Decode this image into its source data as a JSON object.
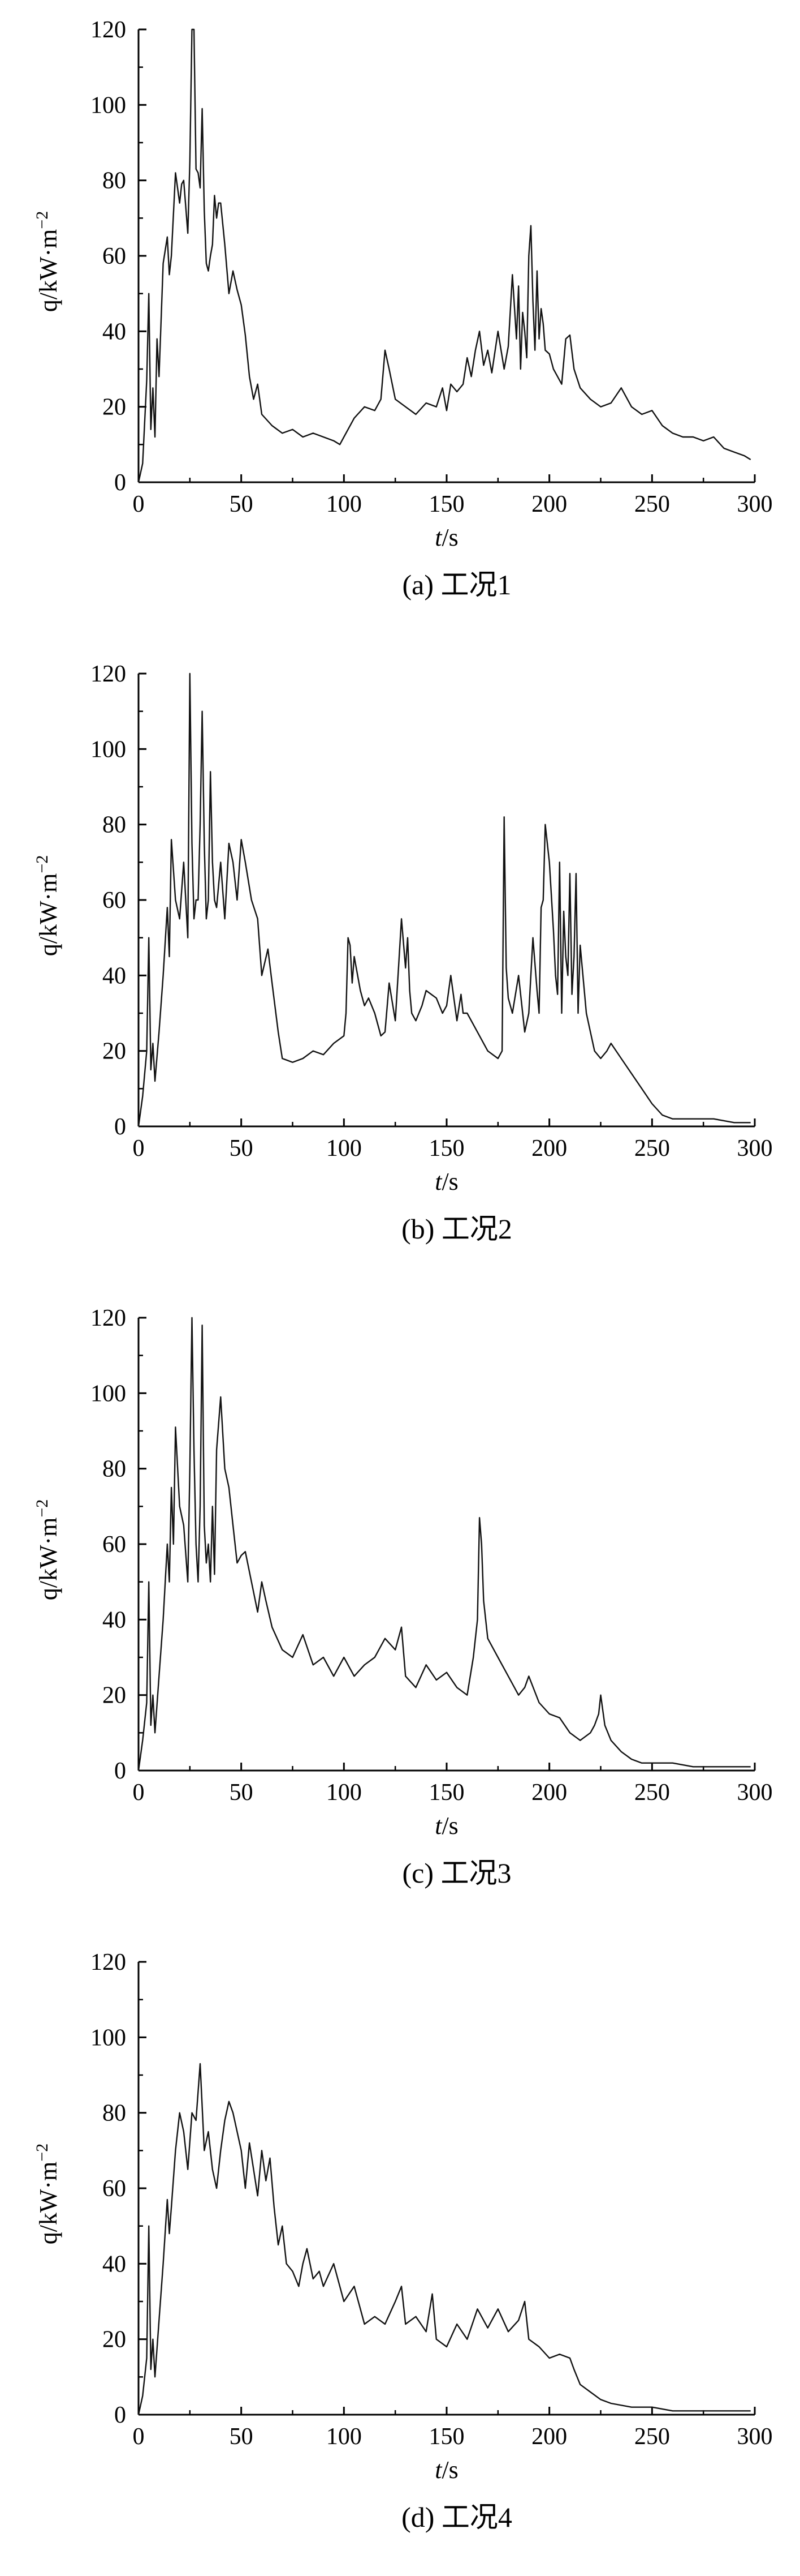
{
  "chart_data": [
    {
      "type": "line",
      "caption": "(a) 工况1",
      "xlabel": "t/s",
      "ylabel": "q/kW·m",
      "ylabel_sup": "−2",
      "xlim": [
        0,
        300
      ],
      "ylim": [
        0,
        120
      ],
      "xticks": [
        0,
        50,
        100,
        150,
        200,
        250,
        300
      ],
      "yticks": [
        0,
        20,
        40,
        60,
        80,
        100,
        120
      ],
      "grid": false,
      "series": [
        {
          "x": [
            0,
            2,
            4,
            5,
            6,
            7,
            8,
            9,
            10,
            12,
            14,
            15,
            16,
            18,
            20,
            21,
            22,
            24,
            25,
            26,
            27,
            28,
            29,
            30,
            31,
            32,
            33,
            34,
            35,
            36,
            37,
            38,
            39,
            40,
            42,
            44,
            46,
            48,
            50,
            52,
            54,
            56,
            58,
            60,
            65,
            70,
            75,
            80,
            85,
            90,
            95,
            98,
            100,
            105,
            110,
            115,
            118,
            120,
            122,
            125,
            130,
            135,
            140,
            145,
            148,
            150,
            152,
            155,
            158,
            160,
            162,
            164,
            166,
            168,
            170,
            172,
            175,
            178,
            180,
            182,
            184,
            185,
            186,
            187,
            188,
            189,
            190,
            191,
            192,
            193,
            194,
            195,
            196,
            197,
            198,
            200,
            202,
            204,
            206,
            208,
            210,
            212,
            215,
            220,
            225,
            230,
            235,
            240,
            245,
            250,
            255,
            260,
            265,
            270,
            275,
            280,
            285,
            290,
            295,
            298
          ],
          "values": [
            0,
            5,
            27,
            50,
            14,
            25,
            12,
            38,
            28,
            58,
            65,
            55,
            60,
            82,
            74,
            79,
            80,
            66,
            85,
            120,
            120,
            83,
            82,
            78,
            99,
            72,
            58,
            56,
            60,
            63,
            76,
            70,
            74,
            74,
            63,
            50,
            56,
            51,
            47,
            39,
            28,
            22,
            26,
            18,
            15,
            13,
            14,
            12,
            13,
            12,
            11,
            10,
            12,
            17,
            20,
            19,
            22,
            35,
            30,
            22,
            20,
            18,
            21,
            20,
            25,
            19,
            26,
            24,
            26,
            33,
            28,
            35,
            40,
            31,
            35,
            29,
            40,
            30,
            36,
            55,
            38,
            52,
            30,
            45,
            40,
            33,
            60,
            68,
            48,
            35,
            56,
            38,
            46,
            42,
            35,
            34,
            30,
            28,
            26,
            38,
            39,
            30,
            25,
            22,
            20,
            21,
            25,
            20,
            18,
            19,
            15,
            13,
            12,
            12,
            11,
            12,
            9,
            8,
            7,
            6
          ]
        }
      ]
    },
    {
      "type": "line",
      "caption": "(b) 工况2",
      "xlabel": "t/s",
      "ylabel": "q/kW·m",
      "ylabel_sup": "−2",
      "xlim": [
        0,
        300
      ],
      "ylim": [
        0,
        120
      ],
      "xticks": [
        0,
        50,
        100,
        150,
        200,
        250,
        300
      ],
      "yticks": [
        0,
        20,
        40,
        60,
        80,
        100,
        120
      ],
      "grid": false,
      "series": [
        {
          "x": [
            0,
            2,
            4,
            5,
            6,
            7,
            8,
            10,
            12,
            14,
            15,
            16,
            18,
            20,
            22,
            24,
            25,
            26,
            27,
            28,
            29,
            30,
            31,
            32,
            33,
            34,
            35,
            36,
            37,
            38,
            40,
            42,
            44,
            46,
            48,
            50,
            52,
            55,
            58,
            60,
            63,
            65,
            68,
            70,
            75,
            80,
            85,
            90,
            95,
            100,
            101,
            102,
            103,
            104,
            105,
            108,
            110,
            112,
            115,
            118,
            120,
            122,
            125,
            128,
            130,
            131,
            132,
            133,
            135,
            138,
            140,
            145,
            148,
            150,
            152,
            155,
            157,
            158,
            160,
            165,
            170,
            175,
            177,
            178,
            179,
            180,
            182,
            185,
            188,
            190,
            192,
            194,
            195,
            196,
            197,
            198,
            200,
            202,
            203,
            204,
            205,
            206,
            207,
            208,
            209,
            210,
            211,
            212,
            213,
            214,
            215,
            218,
            220,
            222,
            225,
            228,
            230,
            235,
            240,
            245,
            250,
            255,
            260,
            270,
            280,
            290,
            298
          ],
          "values": [
            0,
            8,
            20,
            50,
            15,
            22,
            12,
            25,
            40,
            58,
            45,
            76,
            60,
            55,
            70,
            50,
            120,
            75,
            55,
            60,
            60,
            80,
            110,
            75,
            55,
            60,
            94,
            70,
            60,
            58,
            70,
            55,
            75,
            70,
            60,
            76,
            70,
            60,
            55,
            40,
            47,
            38,
            25,
            18,
            17,
            18,
            20,
            19,
            22,
            24,
            30,
            50,
            48,
            38,
            45,
            36,
            32,
            34,
            30,
            24,
            25,
            38,
            28,
            55,
            42,
            50,
            36,
            30,
            28,
            32,
            36,
            34,
            30,
            32,
            40,
            28,
            35,
            30,
            30,
            25,
            20,
            18,
            20,
            82,
            42,
            34,
            30,
            40,
            25,
            30,
            50,
            36,
            30,
            58,
            60,
            80,
            70,
            52,
            40,
            35,
            70,
            30,
            57,
            45,
            40,
            67,
            35,
            45,
            67,
            30,
            48,
            30,
            25,
            20,
            18,
            20,
            22,
            18,
            14,
            10,
            6,
            3,
            2,
            2,
            2,
            1,
            1
          ]
        }
      ]
    },
    {
      "type": "line",
      "caption": "(c) 工况3",
      "xlabel": "t/s",
      "ylabel": "q/kW·m",
      "ylabel_sup": "−2",
      "xlim": [
        0,
        300
      ],
      "ylim": [
        0,
        120
      ],
      "xticks": [
        0,
        50,
        100,
        150,
        200,
        250,
        300
      ],
      "yticks": [
        0,
        20,
        40,
        60,
        80,
        100,
        120
      ],
      "grid": false,
      "series": [
        {
          "x": [
            0,
            2,
            4,
            5,
            6,
            7,
            8,
            10,
            12,
            14,
            15,
            16,
            17,
            18,
            20,
            22,
            24,
            25,
            26,
            27,
            28,
            29,
            30,
            31,
            32,
            33,
            34,
            35,
            36,
            37,
            38,
            40,
            42,
            44,
            46,
            48,
            50,
            52,
            55,
            58,
            60,
            62,
            65,
            70,
            75,
            80,
            85,
            90,
            95,
            100,
            105,
            110,
            115,
            120,
            125,
            128,
            130,
            135,
            140,
            145,
            150,
            155,
            160,
            163,
            165,
            166,
            167,
            168,
            170,
            175,
            180,
            185,
            188,
            190,
            195,
            200,
            205,
            210,
            215,
            220,
            222,
            224,
            225,
            227,
            230,
            235,
            240,
            245,
            250,
            260,
            270,
            280,
            290,
            298
          ],
          "values": [
            0,
            8,
            18,
            50,
            12,
            20,
            10,
            25,
            40,
            60,
            50,
            75,
            60,
            91,
            70,
            65,
            50,
            80,
            120,
            85,
            60,
            50,
            70,
            118,
            65,
            55,
            60,
            50,
            70,
            52,
            85,
            99,
            80,
            75,
            65,
            55,
            57,
            58,
            50,
            42,
            50,
            45,
            38,
            32,
            30,
            36,
            28,
            30,
            25,
            30,
            25,
            28,
            30,
            35,
            32,
            38,
            25,
            22,
            28,
            24,
            26,
            22,
            20,
            30,
            40,
            67,
            60,
            45,
            35,
            30,
            25,
            20,
            22,
            25,
            18,
            15,
            14,
            10,
            8,
            10,
            12,
            15,
            20,
            12,
            8,
            5,
            3,
            2,
            2,
            2,
            1,
            1,
            1,
            1
          ]
        }
      ]
    },
    {
      "type": "line",
      "caption": "(d) 工况4",
      "xlabel": "t/s",
      "ylabel": "q/kW·m",
      "ylabel_sup": "−2",
      "xlim": [
        0,
        300
      ],
      "ylim": [
        0,
        120
      ],
      "xticks": [
        0,
        50,
        100,
        150,
        200,
        250,
        300
      ],
      "yticks": [
        0,
        20,
        40,
        60,
        80,
        100,
        120
      ],
      "grid": false,
      "series": [
        {
          "x": [
            0,
            2,
            4,
            5,
            6,
            7,
            8,
            10,
            12,
            14,
            15,
            16,
            18,
            20,
            22,
            24,
            26,
            28,
            30,
            32,
            34,
            36,
            38,
            40,
            42,
            44,
            46,
            48,
            50,
            52,
            54,
            56,
            58,
            60,
            62,
            64,
            66,
            68,
            70,
            72,
            75,
            78,
            80,
            82,
            85,
            88,
            90,
            95,
            100,
            105,
            110,
            115,
            120,
            125,
            128,
            130,
            135,
            140,
            143,
            145,
            150,
            155,
            160,
            165,
            170,
            175,
            180,
            185,
            188,
            190,
            195,
            200,
            205,
            210,
            212,
            215,
            220,
            225,
            230,
            240,
            250,
            260,
            270,
            280,
            290,
            298
          ],
          "values": [
            0,
            5,
            15,
            50,
            12,
            20,
            10,
            25,
            40,
            57,
            48,
            55,
            70,
            80,
            75,
            65,
            80,
            78,
            93,
            70,
            75,
            65,
            60,
            70,
            78,
            83,
            80,
            75,
            70,
            60,
            72,
            65,
            58,
            70,
            62,
            68,
            55,
            45,
            50,
            40,
            38,
            34,
            40,
            44,
            36,
            38,
            34,
            40,
            30,
            34,
            24,
            26,
            24,
            30,
            34,
            24,
            26,
            22,
            32,
            20,
            18,
            24,
            20,
            28,
            23,
            28,
            22,
            25,
            30,
            20,
            18,
            15,
            16,
            15,
            12,
            8,
            6,
            4,
            3,
            2,
            2,
            1,
            1,
            1,
            1,
            1
          ]
        }
      ]
    }
  ]
}
